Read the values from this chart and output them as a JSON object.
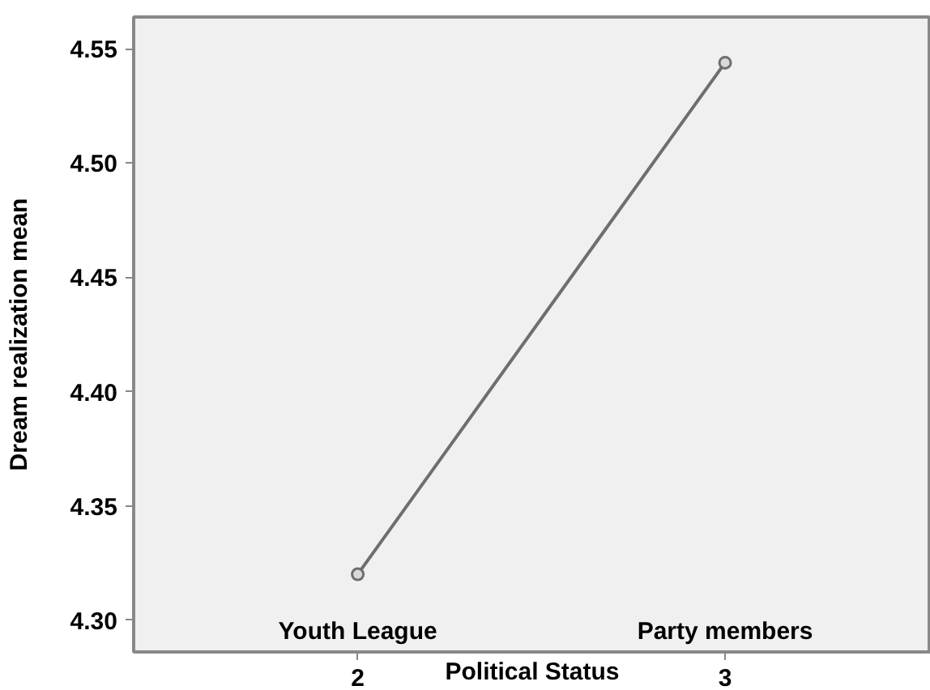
{
  "chart_data": {
    "type": "line",
    "xlabel": "Political Status",
    "ylabel": "Dream realization mean",
    "x": [
      2,
      3
    ],
    "series": [
      {
        "color": "#6e6e6e",
        "values": [
          4.32,
          4.544
        ]
      }
    ],
    "xlim": [
      1.39,
      3.56
    ],
    "xticks": [
      2,
      3
    ],
    "ylim": [
      4.286,
      4.564
    ],
    "yticks": [
      {
        "value": 4.3,
        "label": "4.30"
      },
      {
        "value": 4.35,
        "label": "4.35"
      },
      {
        "value": 4.4,
        "label": "4.40"
      },
      {
        "value": 4.45,
        "label": "4.45"
      },
      {
        "value": 4.5,
        "label": "4.50"
      },
      {
        "value": 4.55,
        "label": "4.55"
      }
    ],
    "annotations": [
      "Youth League",
      "Party members"
    ],
    "marker": "circle",
    "grid": false
  }
}
